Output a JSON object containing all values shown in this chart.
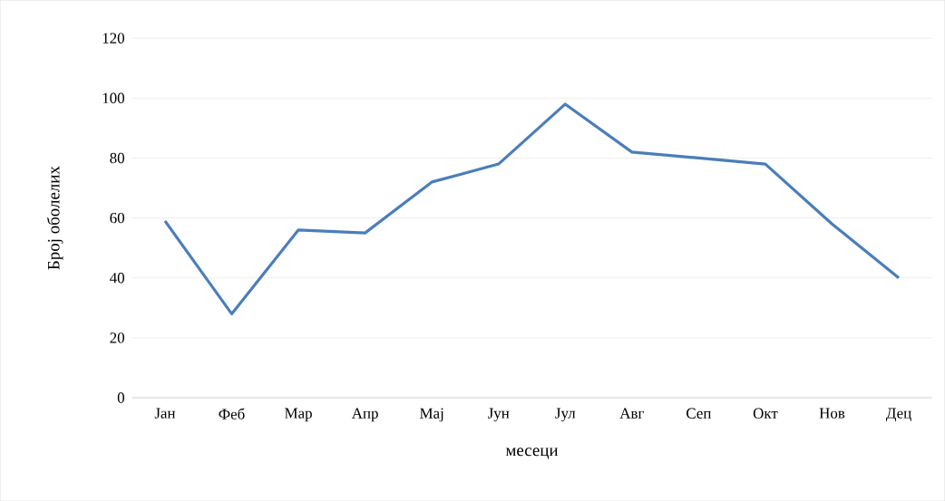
{
  "chart_data": {
    "type": "line",
    "xlabel": "месеци",
    "ylabel": "Број оболелих",
    "categories": [
      "Јан",
      "Феб",
      "Мар",
      "Апр",
      "Мај",
      "Јун",
      "Јул",
      "Авг",
      "Сеп",
      "Окт",
      "Нов",
      "Дец"
    ],
    "values": [
      59,
      28,
      56,
      55,
      72,
      78,
      98,
      82,
      80,
      78,
      58,
      40
    ],
    "color": "#4a7ebb",
    "ylim": [
      0,
      120
    ],
    "yticks": [
      0,
      20,
      40,
      60,
      80,
      100,
      120
    ],
    "grid": "y",
    "marker": "none",
    "line_style": "solid"
  }
}
